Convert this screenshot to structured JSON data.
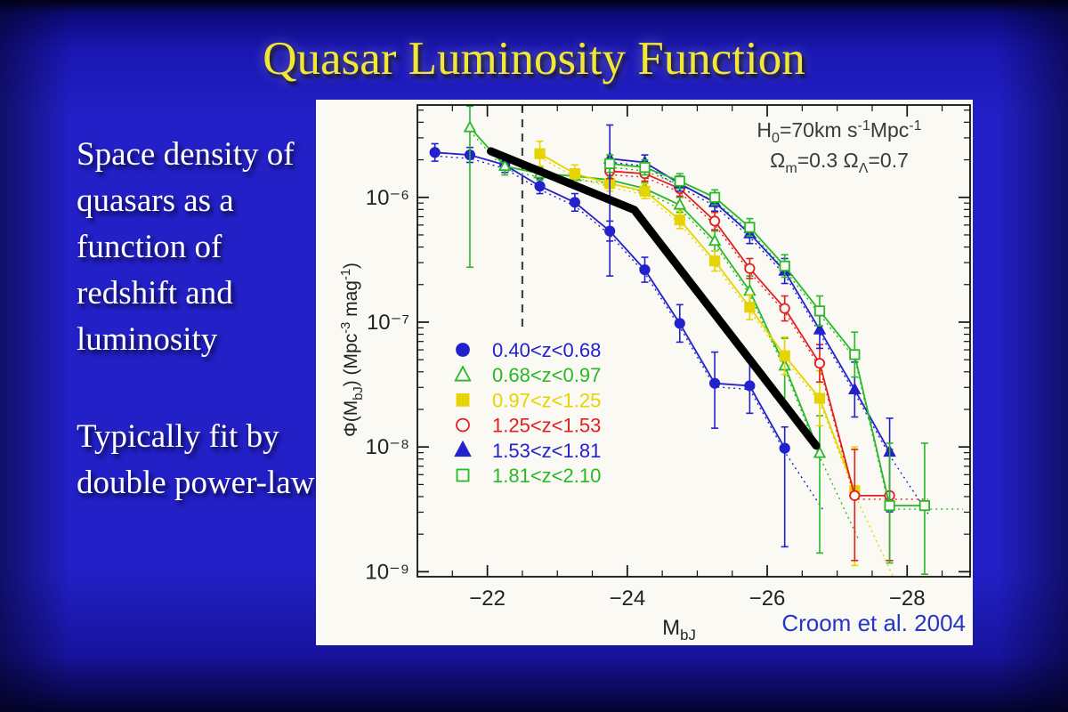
{
  "slide": {
    "title": "Quasar Luminosity Function",
    "paragraph1": "Space density of quasars as a function of redshift and luminosity",
    "paragraph2": "Typically fit by double power-law",
    "citation": "Croom et al. 2004",
    "citation_color": "#2535c8",
    "background_color": "#2220c6",
    "title_color": "#f2e636"
  },
  "chart_data": {
    "type": "line",
    "title": "",
    "xlabel": "M_{bJ}",
    "ylabel": "Φ(M_{bJ}) (Mpc^{-3} mag^{-1})",
    "y_is_log10_phi": true,
    "xlim": [
      -21.0,
      -28.9
    ],
    "ylog_lim": [
      -5.26,
      -9.04
    ],
    "x_major_ticks": [
      -22,
      -24,
      -26,
      -28
    ],
    "y_major_ticks": [
      -6,
      -7,
      -8,
      -9
    ],
    "y_tick_labels": [
      "10⁻⁶",
      "10⁻⁷",
      "10⁻⁸",
      "10⁻⁹"
    ],
    "grid": false,
    "legend_position": "inside-left-middle",
    "annotation": {
      "line1": "H_{0}=70km s^{-1}Mpc^{-1}",
      "line2": "Ω_{m}=0.3  Ω_{Λ}=0.7",
      "color": "#3a3a3a"
    },
    "dashed_vertical_line": {
      "M": -22.5,
      "log_top": -5.26,
      "log_bottom": -7.08,
      "color": "#444444"
    },
    "double_power_law_overlay": {
      "color": "#000000",
      "points_M_logPhi": [
        [
          -22.05,
          -5.63
        ],
        [
          -24.1,
          -6.1
        ],
        [
          -26.7,
          -7.99
        ]
      ]
    },
    "series": [
      {
        "name": "0.40<z<0.68",
        "color": "#2222cc",
        "marker": "circle",
        "filled": true,
        "points_M_logPhi_errUp_errDn": [
          [
            -21.25,
            -5.64,
            0.07,
            0.07
          ],
          [
            -21.75,
            -5.66,
            0.06,
            0.06
          ],
          [
            -22.25,
            -5.74,
            0.06,
            0.06
          ],
          [
            -22.75,
            -5.91,
            0.06,
            0.06
          ],
          [
            -23.25,
            -6.04,
            0.07,
            0.07
          ],
          [
            -23.75,
            -6.27,
            0.08,
            0.08
          ],
          [
            -24.25,
            -6.58,
            0.1,
            0.1
          ],
          [
            -24.75,
            -7.01,
            0.15,
            0.15
          ],
          [
            -25.25,
            -7.49,
            0.25,
            0.36
          ],
          [
            -25.75,
            -7.51,
            0.2,
            0.22
          ],
          [
            -26.25,
            -8.01,
            0.17,
            0.79
          ]
        ]
      },
      {
        "name": "0.68<z<0.97",
        "color": "#28b828",
        "marker": "triangle",
        "filled": false,
        "points_M_logPhi_errUp_errDn": [
          [
            -21.75,
            -5.44,
            0.17,
            1.12
          ],
          [
            -22.25,
            -5.75,
            0.07,
            0.07
          ],
          [
            -22.75,
            -5.81,
            0.05,
            0.05
          ],
          [
            -23.25,
            -5.83,
            0.05,
            0.05
          ],
          [
            -23.75,
            -5.86,
            0.05,
            0.05
          ],
          [
            -24.25,
            -5.93,
            0.05,
            0.05
          ],
          [
            -24.75,
            -6.06,
            0.06,
            0.06
          ],
          [
            -25.25,
            -6.35,
            0.08,
            0.08
          ],
          [
            -25.75,
            -6.75,
            0.12,
            0.12
          ],
          [
            -26.25,
            -7.35,
            0.22,
            0.3
          ],
          [
            -26.75,
            -8.05,
            0.3,
            0.8
          ]
        ]
      },
      {
        "name": "0.97<z<1.25",
        "color": "#e6d400",
        "marker": "square",
        "filled": true,
        "points_M_logPhi_errUp_errDn": [
          [
            -22.75,
            -5.65,
            0.1,
            0.1
          ],
          [
            -23.25,
            -5.81,
            0.07,
            0.07
          ],
          [
            -23.75,
            -5.89,
            0.06,
            0.06
          ],
          [
            -24.25,
            -5.95,
            0.06,
            0.06
          ],
          [
            -24.75,
            -6.18,
            0.07,
            0.07
          ],
          [
            -25.25,
            -6.51,
            0.08,
            0.08
          ],
          [
            -25.75,
            -6.88,
            0.1,
            0.1
          ],
          [
            -26.25,
            -7.27,
            0.15,
            0.15
          ],
          [
            -26.75,
            -7.61,
            0.22,
            0.22
          ],
          [
            -27.25,
            -8.35,
            0.35,
            0.6
          ]
        ]
      },
      {
        "name": "1.25<z<1.53",
        "color": "#e02020",
        "marker": "circle",
        "filled": false,
        "points_M_logPhi_errUp_errDn": [
          [
            -23.75,
            -5.79,
            0.06,
            0.06
          ],
          [
            -24.25,
            -5.81,
            0.06,
            0.06
          ],
          [
            -24.75,
            -5.93,
            0.06,
            0.06
          ],
          [
            -25.25,
            -6.19,
            0.07,
            0.07
          ],
          [
            -25.75,
            -6.57,
            0.08,
            0.08
          ],
          [
            -26.25,
            -6.89,
            0.1,
            0.1
          ],
          [
            -26.75,
            -7.33,
            0.15,
            0.15
          ],
          [
            -27.25,
            -8.39,
            0.37,
            0.52
          ],
          [
            -27.75,
            -8.39,
            0.37,
            0.52
          ]
        ]
      },
      {
        "name": "1.53<z<1.81",
        "color": "#2222cc",
        "marker": "triangle",
        "filled": true,
        "points_M_logPhi_errUp_errDn": [
          [
            -23.75,
            -5.69,
            0.27,
            0.94
          ],
          [
            -24.25,
            -5.72,
            0.06,
            0.06
          ],
          [
            -24.75,
            -5.89,
            0.06,
            0.06
          ],
          [
            -25.25,
            -6.04,
            0.07,
            0.07
          ],
          [
            -25.75,
            -6.29,
            0.08,
            0.08
          ],
          [
            -26.25,
            -6.59,
            0.1,
            0.1
          ],
          [
            -26.75,
            -7.06,
            0.15,
            0.15
          ],
          [
            -27.25,
            -7.54,
            0.22,
            0.22
          ],
          [
            -27.75,
            -8.04,
            0.27,
            0.48
          ]
        ]
      },
      {
        "name": "1.81<z<2.10",
        "color": "#28b828",
        "marker": "square",
        "filled": false,
        "points_M_logPhi_errUp_errDn": [
          [
            -23.75,
            -5.73,
            0.07,
            0.07
          ],
          [
            -24.25,
            -5.76,
            0.06,
            0.06
          ],
          [
            -24.75,
            -5.87,
            0.06,
            0.06
          ],
          [
            -25.25,
            -6.0,
            0.06,
            0.06
          ],
          [
            -25.75,
            -6.24,
            0.07,
            0.07
          ],
          [
            -26.25,
            -6.55,
            0.09,
            0.09
          ],
          [
            -26.75,
            -6.91,
            0.12,
            0.12
          ],
          [
            -27.25,
            -7.26,
            0.18,
            0.18
          ],
          [
            -27.75,
            -8.47,
            0.5,
            0.46
          ],
          [
            -28.25,
            -8.47,
            0.5,
            0.55
          ]
        ]
      }
    ]
  }
}
